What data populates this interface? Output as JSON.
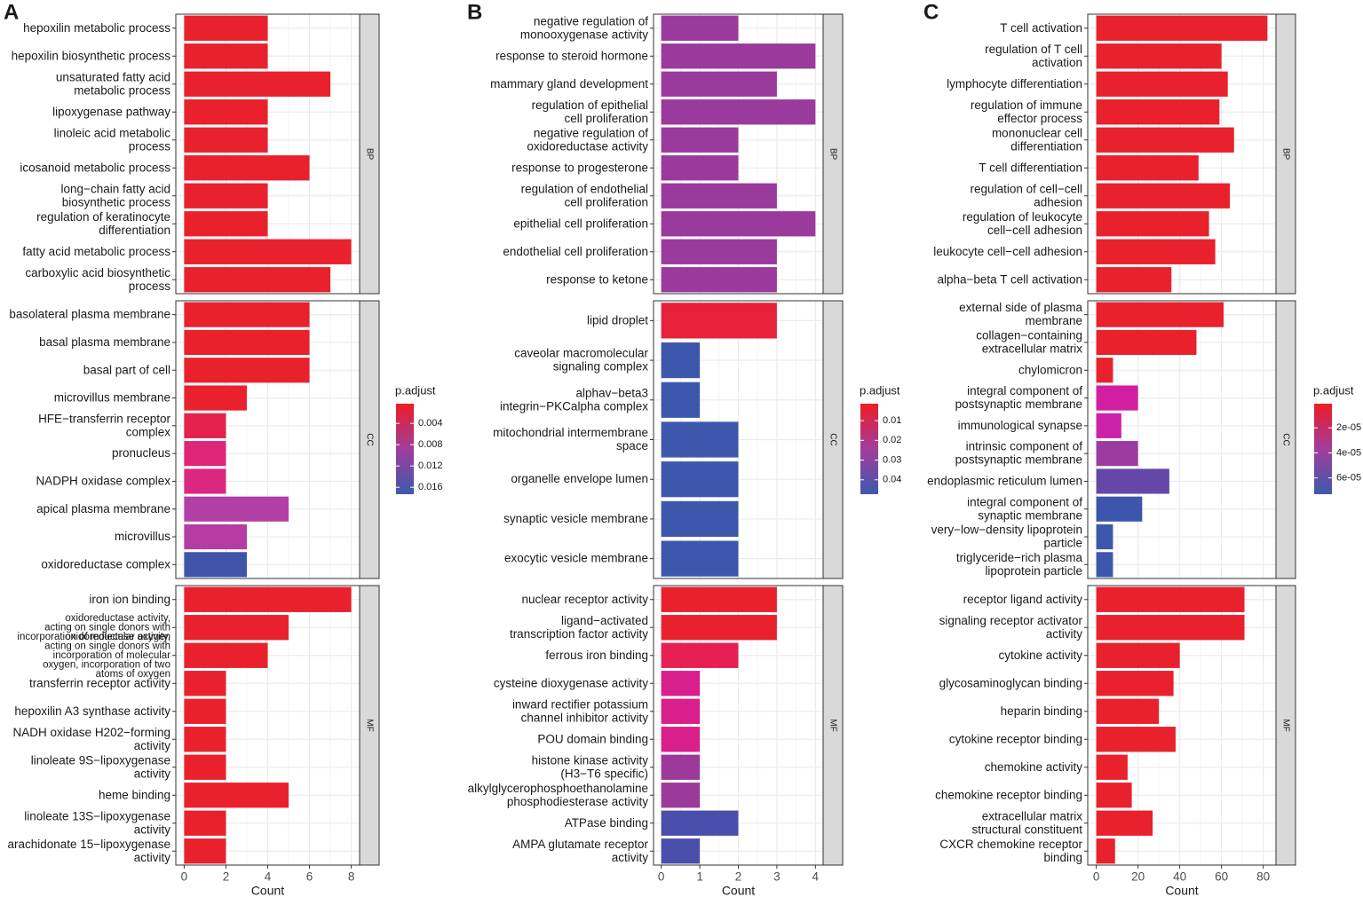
{
  "chart_data": [
    {
      "type": "bar",
      "panel_label": "A",
      "xlabel": "Count",
      "xlim": [
        -0.4,
        8.4
      ],
      "xticks": [
        0,
        2,
        4,
        6,
        8
      ],
      "facets": [
        {
          "name": "BP",
          "categories": [
            "hepoxilin metabolic process",
            "hepoxilin biosynthetic process",
            "unsaturated fatty acid\nmetabolic process",
            "lipoxygenase pathway",
            "linoleic acid metabolic\nprocess",
            "icosanoid metabolic process",
            "long−chain fatty acid\nbiosynthetic process",
            "regulation of keratinocyte\ndifferentiation",
            "fatty acid metabolic process",
            "carboxylic acid biosynthetic\nprocess"
          ],
          "values": [
            4,
            4,
            7,
            4,
            4,
            6,
            4,
            4,
            8,
            7
          ],
          "colors": [
            "#e8212d",
            "#e8212d",
            "#e8212d",
            "#e8212d",
            "#e8212d",
            "#e8212d",
            "#e8212d",
            "#e8212d",
            "#e8212d",
            "#e8212d"
          ]
        },
        {
          "name": "CC",
          "categories": [
            "basolateral plasma membrane",
            "basal plasma membrane",
            "basal part of cell",
            "microvillus membrane",
            "HFE−transferrin receptor\ncomplex",
            "pronucleus",
            "NADPH oxidase complex",
            "apical plasma membrane",
            "microvillus",
            "oxidoreductase complex"
          ],
          "values": [
            6,
            6,
            6,
            3,
            2,
            2,
            2,
            5,
            3,
            3
          ],
          "colors": [
            "#e8212d",
            "#e8212d",
            "#e8212d",
            "#e8212d",
            "#e4214a",
            "#de2578",
            "#dc2780",
            "#b23fa5",
            "#b53ca3",
            "#3f55a8"
          ]
        },
        {
          "name": "MF",
          "categories": [
            "iron ion binding",
            "oxidoreductase activity,\nacting on single donors with\nincorporation of molecular oxygen",
            "oxidoreductase activity,\nacting on single donors with\nincorporation of molecular\noxygen, incorporation of two\natoms of oxygen",
            "transferrin receptor activity",
            "hepoxilin A3 synthase activity",
            "NADH oxidase H202−forming\nactivity",
            "linoleate 9S−lipoxygenase\nactivity",
            "heme binding",
            "linoleate 13S−lipoxygenase\nactivity",
            "arachidonate 15−lipoxygenase\nactivity"
          ],
          "values": [
            8,
            5,
            4,
            2,
            2,
            2,
            2,
            5,
            2,
            2
          ],
          "colors": [
            "#e8212d",
            "#e8212d",
            "#e8212d",
            "#e8212d",
            "#e8212d",
            "#e8212d",
            "#e8212d",
            "#e8212d",
            "#e8212d",
            "#e8212d"
          ]
        }
      ],
      "colorbar": {
        "title": "p.adjust",
        "lim": [
          0.0003,
          0.0173
        ],
        "ticks": [
          0.004,
          0.008,
          0.012,
          0.016
        ],
        "colors": [
          "#ee1c25",
          "#a13d9c",
          "#3c5aab"
        ]
      }
    },
    {
      "type": "bar",
      "panel_label": "B",
      "xlabel": "Count",
      "xlim": [
        -0.2,
        4.2
      ],
      "xticks": [
        0,
        1,
        2,
        3,
        4
      ],
      "facets": [
        {
          "name": "BP",
          "categories": [
            "negative regulation of\nmonooxygenase activity",
            "response to steroid hormone",
            "mammary gland development",
            "regulation of epithelial\ncell proliferation",
            "negative regulation of\noxidoreductase activity",
            "response to progesterone",
            "regulation of endothelial\ncell proliferation",
            "epithelial cell proliferation",
            "endothelial cell proliferation",
            "response to ketone"
          ],
          "values": [
            2,
            4,
            3,
            4,
            2,
            2,
            3,
            4,
            3,
            3
          ],
          "colors": [
            "#9a3a9c",
            "#9a3a9c",
            "#9a3a9c",
            "#9a3a9c",
            "#9a3a9c",
            "#9a3a9c",
            "#9a3a9c",
            "#9a3a9c",
            "#9a3a9c",
            "#9a3a9c"
          ]
        },
        {
          "name": "CC",
          "categories": [
            "lipid droplet",
            "caveolar macromolecular\nsignaling complex",
            "alphav−beta3\nintegrin−PKCalpha complex",
            "mitochondrial intermembrane\nspace",
            "organelle envelope lumen",
            "synaptic vesicle membrane",
            "exocytic vesicle membrane"
          ],
          "values": [
            3,
            1,
            1,
            2,
            2,
            2,
            2
          ],
          "colors": [
            "#e8213a",
            "#3d57ad",
            "#3d57ad",
            "#3d57ad",
            "#3d57ad",
            "#3d57ad",
            "#3d57ad"
          ]
        },
        {
          "name": "MF",
          "categories": [
            "nuclear receptor activity",
            "ligand−activated\ntranscription factor activity",
            "ferrous iron binding",
            "cysteine dioxygenase activity",
            "inward rectifier potassium\nchannel inhibitor activity",
            "POU domain binding",
            "histone kinase activity\n(H3−T6 specific)",
            "alkylglycerophosphoethanolamine\nphosphodiesterase activity",
            "ATPase binding",
            "AMPA glutamate receptor\nactivity"
          ],
          "values": [
            3,
            3,
            2,
            1,
            1,
            1,
            1,
            1,
            2,
            1
          ],
          "colors": [
            "#e8212d",
            "#e8212d",
            "#e61f55",
            "#d91f8c",
            "#d91f8c",
            "#d91f8c",
            "#9b3a9b",
            "#9b3a9b",
            "#4a4fab",
            "#4a4fab"
          ]
        }
      ],
      "colorbar": {
        "title": "p.adjust",
        "lim": [
          0.0014,
          0.0473
        ],
        "ticks": [
          0.01,
          0.02,
          0.03,
          0.04
        ],
        "colors": [
          "#ee1c25",
          "#a13d9c",
          "#3c5aab"
        ]
      }
    },
    {
      "type": "bar",
      "panel_label": "C",
      "xlabel": "Count",
      "xlim": [
        -4.1,
        86.1
      ],
      "xticks": [
        0,
        20,
        40,
        60,
        80
      ],
      "facets": [
        {
          "name": "BP",
          "categories": [
            "T cell activation",
            "regulation of T cell\nactivation",
            "lymphocyte differentiation",
            "regulation of immune\neffector process",
            "mononuclear cell\ndifferentiation",
            "T cell differentiation",
            "regulation of cell−cell\nadhesion",
            "regulation of leukocyte\ncell−cell adhesion",
            "leukocyte cell−cell adhesion",
            "alpha−beta T cell activation"
          ],
          "values": [
            82,
            60,
            63,
            59,
            66,
            49,
            64,
            54,
            57,
            36
          ],
          "colors": [
            "#e8212d",
            "#e8212d",
            "#e8212d",
            "#e8212d",
            "#e8212d",
            "#e8212d",
            "#e8212d",
            "#e8212d",
            "#e8212d",
            "#e8212d"
          ]
        },
        {
          "name": "CC",
          "categories": [
            "external side of plasma\nmembrane",
            "collagen−containing\nextracellular matrix",
            "chylomicron",
            "integral component of\npostsynaptic membrane",
            "immunological synapse",
            "intrinsic component of\npostsynaptic membrane",
            "endoplasmic reticulum lumen",
            "integral component of\nsynaptic membrane",
            "very−low−density lipoprotein\nparticle",
            "triglyceride−rich plasma\nlipoprotein particle"
          ],
          "values": [
            61,
            48,
            8,
            20,
            12,
            20,
            35,
            22,
            8,
            8
          ],
          "colors": [
            "#e8212d",
            "#e8212d",
            "#e8212d",
            "#d21fa2",
            "#cc22a8",
            "#9b3ba0",
            "#6547a8",
            "#3d56ad",
            "#3d57ad",
            "#3d57ad"
          ]
        },
        {
          "name": "MF",
          "categories": [
            "receptor ligand activity",
            "signaling receptor activator\nactivity",
            "cytokine activity",
            "glycosaminoglycan binding",
            "heparin binding",
            "cytokine receptor binding",
            "chemokine activity",
            "chemokine receptor binding",
            "extracellular matrix\nstructural constituent",
            "CXCR chemokine receptor\nbinding"
          ],
          "values": [
            71,
            71,
            40,
            37,
            30,
            38,
            15,
            17,
            27,
            9
          ],
          "colors": [
            "#e8212d",
            "#e8212d",
            "#e8212d",
            "#e8212d",
            "#e8212d",
            "#e8212d",
            "#e8212d",
            "#e8212d",
            "#e8212d",
            "#e8212d"
          ]
        }
      ],
      "colorbar": {
        "title": "p.adjust",
        "lim": [
          7e-07,
          7.3e-05
        ],
        "ticks": [
          {
            "value": 2e-05,
            "label": "2e-05"
          },
          {
            "value": 4e-05,
            "label": "4e-05"
          },
          {
            "value": 6e-05,
            "label": "6e-05"
          }
        ],
        "colors": [
          "#ee1c25",
          "#a13d9c",
          "#3c5aab"
        ]
      }
    }
  ]
}
